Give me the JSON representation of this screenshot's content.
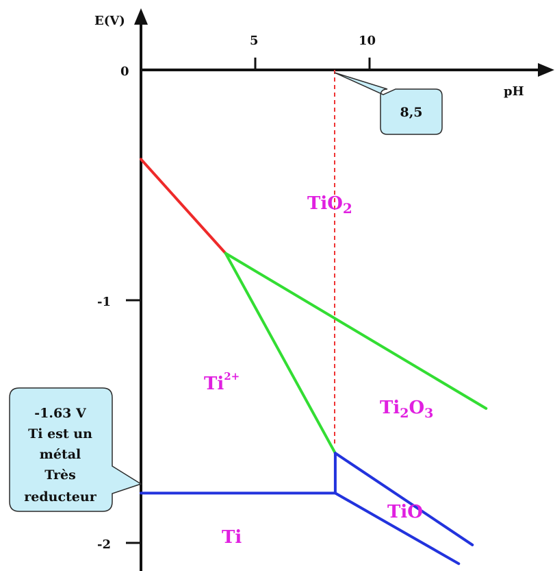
{
  "axes": {
    "y_label": "E(V)",
    "x_label": "pH",
    "origin_label": "0",
    "x_ticks": [
      "5",
      "10"
    ],
    "y_ticks": [
      "-1",
      "-2"
    ]
  },
  "regions": {
    "tio2": {
      "main": "TiO",
      "sub": "2"
    },
    "ti2plus": {
      "main": "Ti",
      "sup": "2+"
    },
    "ti2o3": {
      "a": "Ti",
      "b": "2",
      "c": "O",
      "d": "3"
    },
    "tio": "TiO",
    "ti": "Ti"
  },
  "callouts": {
    "ph_boundary": "8,5",
    "ti_potential": [
      "-1.63 V",
      "Ti est un",
      "métal",
      "Très",
      "reducteur"
    ]
  },
  "chart_data": {
    "type": "line",
    "xlabel": "pH",
    "ylabel": "E(V)",
    "x_ticks": [
      5,
      10
    ],
    "y_ticks": [
      0,
      -1,
      -2
    ],
    "ph_boundary": 8.5,
    "series": [
      {
        "color": "#ee2a2a",
        "points": [
          [
            0,
            -0.38
          ],
          [
            3.7,
            -0.78
          ]
        ]
      },
      {
        "color": "#33dd33",
        "points": [
          [
            3.7,
            -0.78
          ],
          [
            15.1,
            -1.44
          ]
        ]
      },
      {
        "color": "#33dd33",
        "points": [
          [
            3.7,
            -0.78
          ],
          [
            8.5,
            -1.63
          ]
        ]
      },
      {
        "color": "#2233dd",
        "points": [
          [
            0,
            -1.8
          ],
          [
            8.5,
            -1.8
          ]
        ]
      },
      {
        "color": "#2233dd",
        "points": [
          [
            8.5,
            -1.63
          ],
          [
            8.5,
            -1.8
          ]
        ]
      },
      {
        "color": "#2233dd",
        "points": [
          [
            8.5,
            -1.63
          ],
          [
            14.5,
            -2.02
          ]
        ]
      },
      {
        "color": "#2233dd",
        "points": [
          [
            8.5,
            -1.8
          ],
          [
            13.9,
            -2.1
          ]
        ]
      }
    ],
    "colors": {
      "tio2_ti2plus": "#ee2a2a",
      "oxide_boundaries": "#33dd33",
      "metal_boundaries": "#2233dd",
      "labels": "#e020e0",
      "callout_fill": "#c8eef8"
    }
  }
}
